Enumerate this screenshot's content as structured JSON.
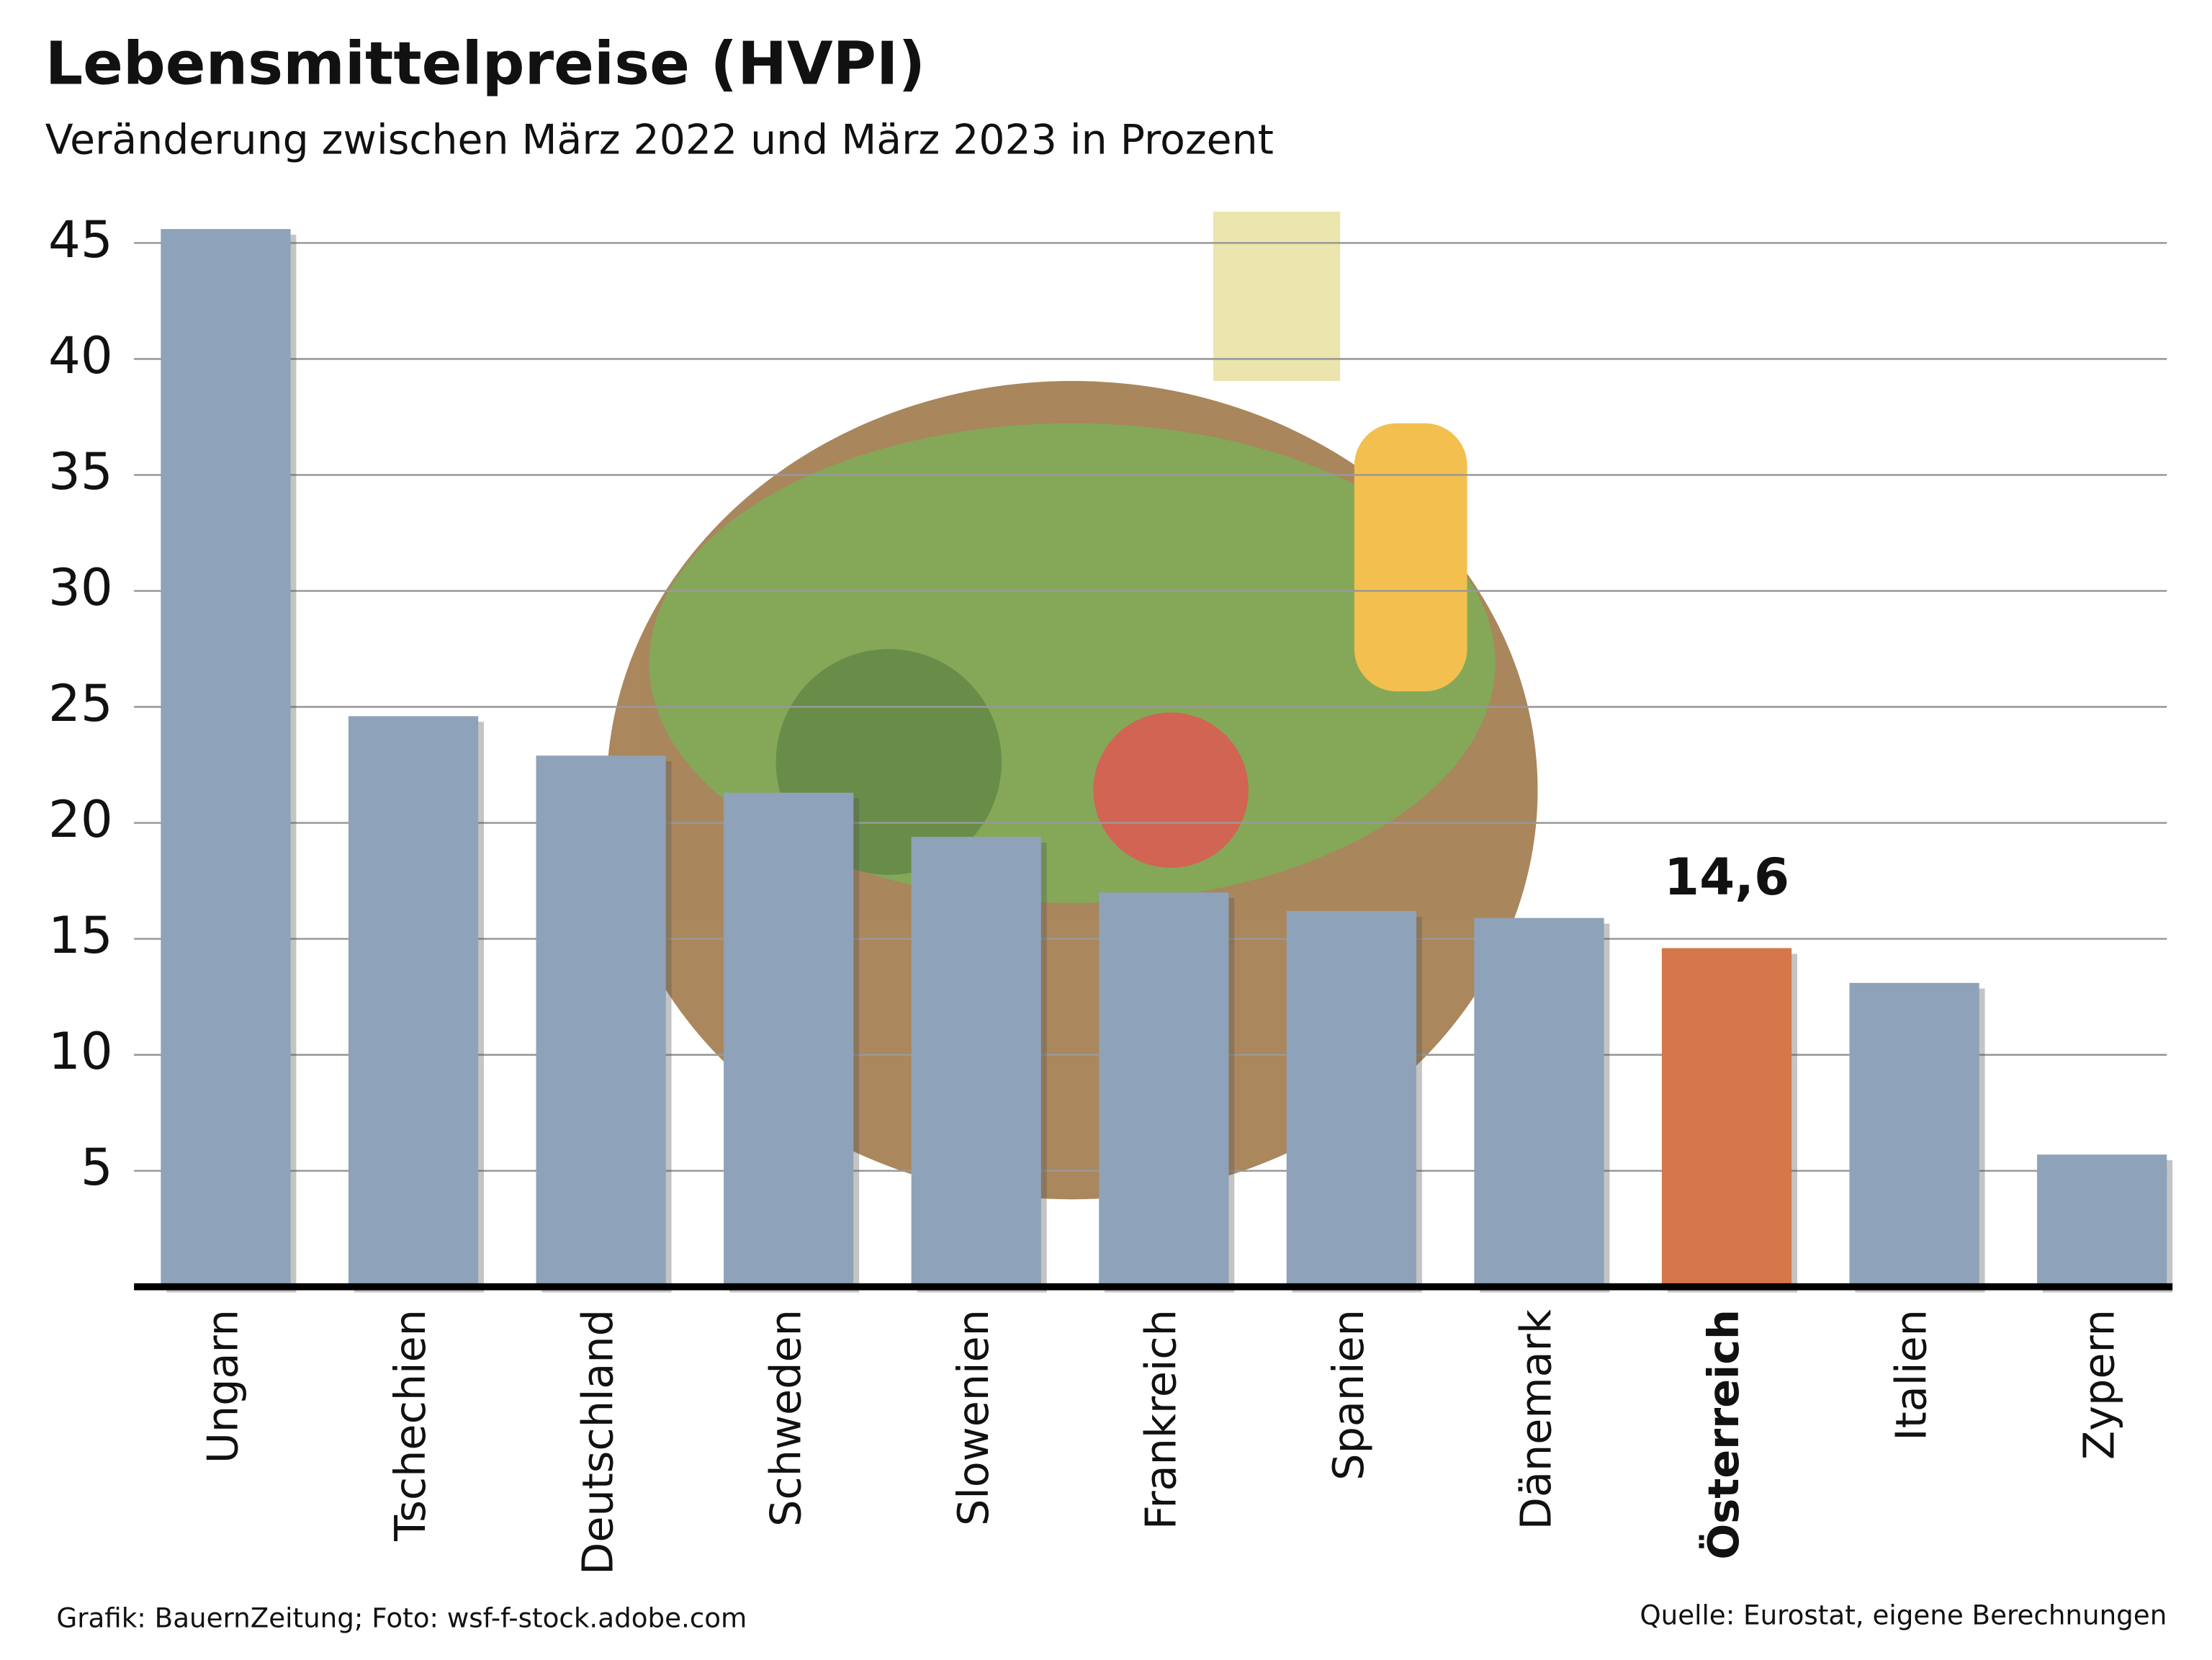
{
  "chart_data": {
    "type": "bar",
    "title": "Lebensmittelpreise (HVPI)",
    "subtitle": "Veränderung zwischen März 2022 und März 2023 in Prozent",
    "categories": [
      "Ungarn",
      "Tschechien",
      "Deutschland",
      "Schweden",
      "Slowenien",
      "Frankreich",
      "Spanien",
      "Dänemark",
      "Österreich",
      "Italien",
      "Zypern"
    ],
    "values": [
      45.6,
      24.6,
      22.9,
      21.3,
      19.4,
      17.0,
      16.2,
      15.9,
      14.6,
      13.1,
      5.7
    ],
    "value_labels": [
      null,
      null,
      null,
      null,
      null,
      null,
      null,
      null,
      "14,6",
      null,
      null
    ],
    "colors": [
      "#8ea3b9",
      "#8ea3b9",
      "#8ea3b9",
      "#8ea3b9",
      "#8ea3b9",
      "#8ea3b9",
      "#8ea3b9",
      "#8ea3b9",
      "#d5764b",
      "#8ea3b9",
      "#8ea3b9"
    ],
    "ylim": [
      0,
      47
    ],
    "yticks": [
      5,
      10,
      15,
      20,
      25,
      30,
      35,
      40,
      45
    ],
    "grid": true,
    "source": "Quelle: Eurostat, eigene Berechnungen",
    "credit": "Grafik: BauernZeitung; Foto: wsf-f-stock.adobe.com"
  }
}
